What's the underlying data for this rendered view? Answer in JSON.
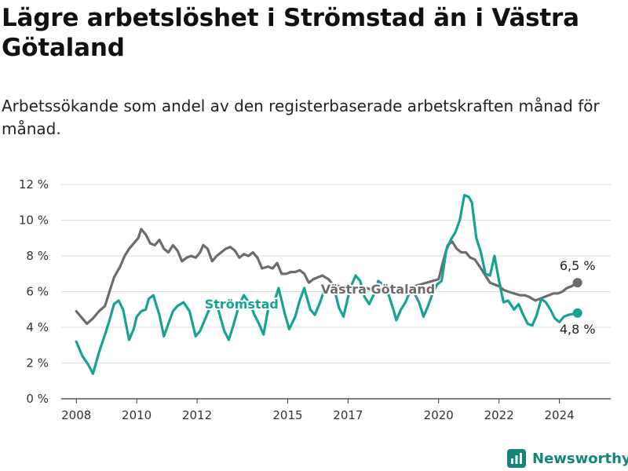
{
  "header": {
    "title": "Lägre arbetslöshet i Strömstad än i Västra Götaland",
    "subtitle": "Arbetssökande som andel av den registerbaserade arbetskraften månad för månad."
  },
  "brand": {
    "name": "Newsworthy"
  },
  "colors": {
    "stromstad": "#16a394",
    "vastra": "#6c6c6c",
    "grid": "#dcdcdc",
    "axis": "#333333",
    "brand": "#17847a"
  },
  "chart_data": {
    "type": "line",
    "x_unit": "year",
    "xlim": [
      2007.5,
      2025.7
    ],
    "ylim": [
      0,
      12
    ],
    "y_ticks": [
      0,
      2,
      4,
      6,
      8,
      10,
      12
    ],
    "y_tick_labels": [
      "0 %",
      "2 %",
      "4 %",
      "6 %",
      "8 %",
      "10 %",
      "12 %"
    ],
    "x_ticks": [
      2008,
      2010,
      2012,
      2015,
      2017,
      2020,
      2022,
      2024
    ],
    "x_tick_labels": [
      "2008",
      "2010",
      "2012",
      "2015",
      "2017",
      "2020",
      "2022",
      "2024"
    ],
    "grid": true,
    "series": [
      {
        "name": "Strömstad",
        "color": "#16a394",
        "points": [
          [
            2008.0,
            3.2
          ],
          [
            2008.2,
            2.4
          ],
          [
            2008.4,
            1.9
          ],
          [
            2008.55,
            1.4
          ],
          [
            2008.75,
            2.6
          ],
          [
            2008.95,
            3.6
          ],
          [
            2009.1,
            4.4
          ],
          [
            2009.25,
            5.3
          ],
          [
            2009.4,
            5.5
          ],
          [
            2009.55,
            5.0
          ],
          [
            2009.75,
            3.3
          ],
          [
            2009.9,
            3.9
          ],
          [
            2010.0,
            4.6
          ],
          [
            2010.15,
            4.9
          ],
          [
            2010.3,
            5.0
          ],
          [
            2010.4,
            5.6
          ],
          [
            2010.55,
            5.8
          ],
          [
            2010.75,
            4.7
          ],
          [
            2010.9,
            3.5
          ],
          [
            2011.05,
            4.2
          ],
          [
            2011.2,
            4.9
          ],
          [
            2011.35,
            5.2
          ],
          [
            2011.55,
            5.4
          ],
          [
            2011.75,
            4.9
          ],
          [
            2011.95,
            3.5
          ],
          [
            2012.1,
            3.8
          ],
          [
            2012.3,
            4.6
          ],
          [
            2012.5,
            5.4
          ],
          [
            2012.7,
            5.0
          ],
          [
            2012.9,
            3.8
          ],
          [
            2013.05,
            3.3
          ],
          [
            2013.2,
            4.1
          ],
          [
            2013.4,
            5.3
          ],
          [
            2013.55,
            5.8
          ],
          [
            2013.75,
            5.3
          ],
          [
            2013.9,
            4.7
          ],
          [
            2014.05,
            4.2
          ],
          [
            2014.2,
            3.6
          ],
          [
            2014.35,
            5.0
          ],
          [
            2014.55,
            5.4
          ],
          [
            2014.7,
            6.2
          ],
          [
            2014.9,
            4.8
          ],
          [
            2015.05,
            3.9
          ],
          [
            2015.25,
            4.6
          ],
          [
            2015.4,
            5.5
          ],
          [
            2015.55,
            6.2
          ],
          [
            2015.75,
            5.0
          ],
          [
            2015.9,
            4.7
          ],
          [
            2016.05,
            5.3
          ],
          [
            2016.2,
            6.0
          ],
          [
            2016.4,
            6.3
          ],
          [
            2016.55,
            6.1
          ],
          [
            2016.7,
            5.1
          ],
          [
            2016.85,
            4.6
          ],
          [
            2017.0,
            5.7
          ],
          [
            2017.1,
            6.3
          ],
          [
            2017.25,
            6.9
          ],
          [
            2017.4,
            6.6
          ],
          [
            2017.55,
            5.7
          ],
          [
            2017.7,
            5.3
          ],
          [
            2017.9,
            6.0
          ],
          [
            2018.0,
            6.6
          ],
          [
            2018.15,
            6.4
          ],
          [
            2018.35,
            5.8
          ],
          [
            2018.5,
            5.0
          ],
          [
            2018.6,
            4.4
          ],
          [
            2018.75,
            5.0
          ],
          [
            2018.9,
            5.4
          ],
          [
            2019.05,
            6.0
          ],
          [
            2019.2,
            5.9
          ],
          [
            2019.35,
            5.4
          ],
          [
            2019.5,
            4.6
          ],
          [
            2019.65,
            5.2
          ],
          [
            2019.8,
            5.9
          ],
          [
            2019.95,
            6.4
          ],
          [
            2020.1,
            6.6
          ],
          [
            2020.25,
            8.3
          ],
          [
            2020.4,
            8.9
          ],
          [
            2020.55,
            9.3
          ],
          [
            2020.7,
            10.0
          ],
          [
            2020.85,
            11.4
          ],
          [
            2021.0,
            11.3
          ],
          [
            2021.1,
            11.0
          ],
          [
            2021.25,
            9.0
          ],
          [
            2021.4,
            8.2
          ],
          [
            2021.55,
            7.0
          ],
          [
            2021.7,
            6.9
          ],
          [
            2021.85,
            8.0
          ],
          [
            2022.0,
            6.6
          ],
          [
            2022.15,
            5.4
          ],
          [
            2022.3,
            5.5
          ],
          [
            2022.5,
            5.0
          ],
          [
            2022.65,
            5.3
          ],
          [
            2022.8,
            4.7
          ],
          [
            2022.95,
            4.2
          ],
          [
            2023.1,
            4.1
          ],
          [
            2023.25,
            4.7
          ],
          [
            2023.4,
            5.6
          ],
          [
            2023.55,
            5.4
          ],
          [
            2023.7,
            5.0
          ],
          [
            2023.85,
            4.5
          ],
          [
            2024.0,
            4.3
          ],
          [
            2024.15,
            4.6
          ],
          [
            2024.3,
            4.7
          ],
          [
            2024.45,
            4.75
          ],
          [
            2024.6,
            4.8
          ]
        ],
        "end_label": "4,8 %"
      },
      {
        "name": "Västra Götaland",
        "color": "#6c6c6c",
        "points": [
          [
            2008.0,
            4.9
          ],
          [
            2008.15,
            4.6
          ],
          [
            2008.35,
            4.2
          ],
          [
            2008.55,
            4.5
          ],
          [
            2008.75,
            4.9
          ],
          [
            2008.95,
            5.2
          ],
          [
            2009.1,
            6.0
          ],
          [
            2009.25,
            6.8
          ],
          [
            2009.45,
            7.4
          ],
          [
            2009.6,
            8.0
          ],
          [
            2009.75,
            8.4
          ],
          [
            2009.9,
            8.7
          ],
          [
            2010.05,
            9.0
          ],
          [
            2010.15,
            9.5
          ],
          [
            2010.3,
            9.2
          ],
          [
            2010.45,
            8.7
          ],
          [
            2010.6,
            8.6
          ],
          [
            2010.75,
            8.9
          ],
          [
            2010.9,
            8.4
          ],
          [
            2011.05,
            8.2
          ],
          [
            2011.2,
            8.6
          ],
          [
            2011.35,
            8.3
          ],
          [
            2011.5,
            7.7
          ],
          [
            2011.65,
            7.9
          ],
          [
            2011.8,
            8.0
          ],
          [
            2011.95,
            7.9
          ],
          [
            2012.1,
            8.2
          ],
          [
            2012.2,
            8.6
          ],
          [
            2012.35,
            8.4
          ],
          [
            2012.5,
            7.7
          ],
          [
            2012.65,
            8.0
          ],
          [
            2012.8,
            8.2
          ],
          [
            2012.95,
            8.4
          ],
          [
            2013.1,
            8.5
          ],
          [
            2013.25,
            8.3
          ],
          [
            2013.4,
            7.9
          ],
          [
            2013.55,
            8.1
          ],
          [
            2013.7,
            8.0
          ],
          [
            2013.85,
            8.2
          ],
          [
            2014.0,
            7.9
          ],
          [
            2014.15,
            7.3
          ],
          [
            2014.35,
            7.4
          ],
          [
            2014.5,
            7.3
          ],
          [
            2014.65,
            7.6
          ],
          [
            2014.8,
            7.0
          ],
          [
            2014.95,
            7.0
          ],
          [
            2015.1,
            7.1
          ],
          [
            2015.25,
            7.1
          ],
          [
            2015.4,
            7.2
          ],
          [
            2015.55,
            7.0
          ],
          [
            2015.7,
            6.5
          ],
          [
            2015.85,
            6.7
          ],
          [
            2016.0,
            6.8
          ],
          [
            2016.15,
            6.9
          ],
          [
            2016.35,
            6.7
          ],
          [
            2016.5,
            6.4
          ],
          [
            2016.7,
            6.3
          ],
          [
            2016.85,
            6.3
          ],
          [
            2017.0,
            6.3
          ],
          [
            2017.2,
            6.2
          ],
          [
            2017.4,
            6.2
          ],
          [
            2017.6,
            6.2
          ],
          [
            2017.8,
            6.1
          ],
          [
            2018.0,
            6.2
          ],
          [
            2018.2,
            6.1
          ],
          [
            2018.4,
            6.1
          ],
          [
            2018.6,
            6.1
          ],
          [
            2018.8,
            6.1
          ],
          [
            2019.0,
            6.2
          ],
          [
            2019.2,
            6.3
          ],
          [
            2019.4,
            6.4
          ],
          [
            2019.6,
            6.5
          ],
          [
            2019.8,
            6.6
          ],
          [
            2020.0,
            6.7
          ],
          [
            2020.15,
            7.7
          ],
          [
            2020.3,
            8.6
          ],
          [
            2020.45,
            8.8
          ],
          [
            2020.6,
            8.4
          ],
          [
            2020.75,
            8.2
          ],
          [
            2020.9,
            8.2
          ],
          [
            2021.05,
            7.9
          ],
          [
            2021.2,
            7.8
          ],
          [
            2021.4,
            7.3
          ],
          [
            2021.55,
            6.9
          ],
          [
            2021.7,
            6.5
          ],
          [
            2021.85,
            6.4
          ],
          [
            2022.0,
            6.3
          ],
          [
            2022.15,
            6.1
          ],
          [
            2022.3,
            6.0
          ],
          [
            2022.5,
            5.9
          ],
          [
            2022.7,
            5.8
          ],
          [
            2022.85,
            5.8
          ],
          [
            2023.0,
            5.7
          ],
          [
            2023.2,
            5.5
          ],
          [
            2023.35,
            5.6
          ],
          [
            2023.5,
            5.7
          ],
          [
            2023.65,
            5.8
          ],
          [
            2023.8,
            5.9
          ],
          [
            2023.95,
            5.9
          ],
          [
            2024.1,
            6.0
          ],
          [
            2024.25,
            6.2
          ],
          [
            2024.4,
            6.3
          ],
          [
            2024.6,
            6.5
          ]
        ],
        "end_label": "6,5 %"
      }
    ]
  }
}
